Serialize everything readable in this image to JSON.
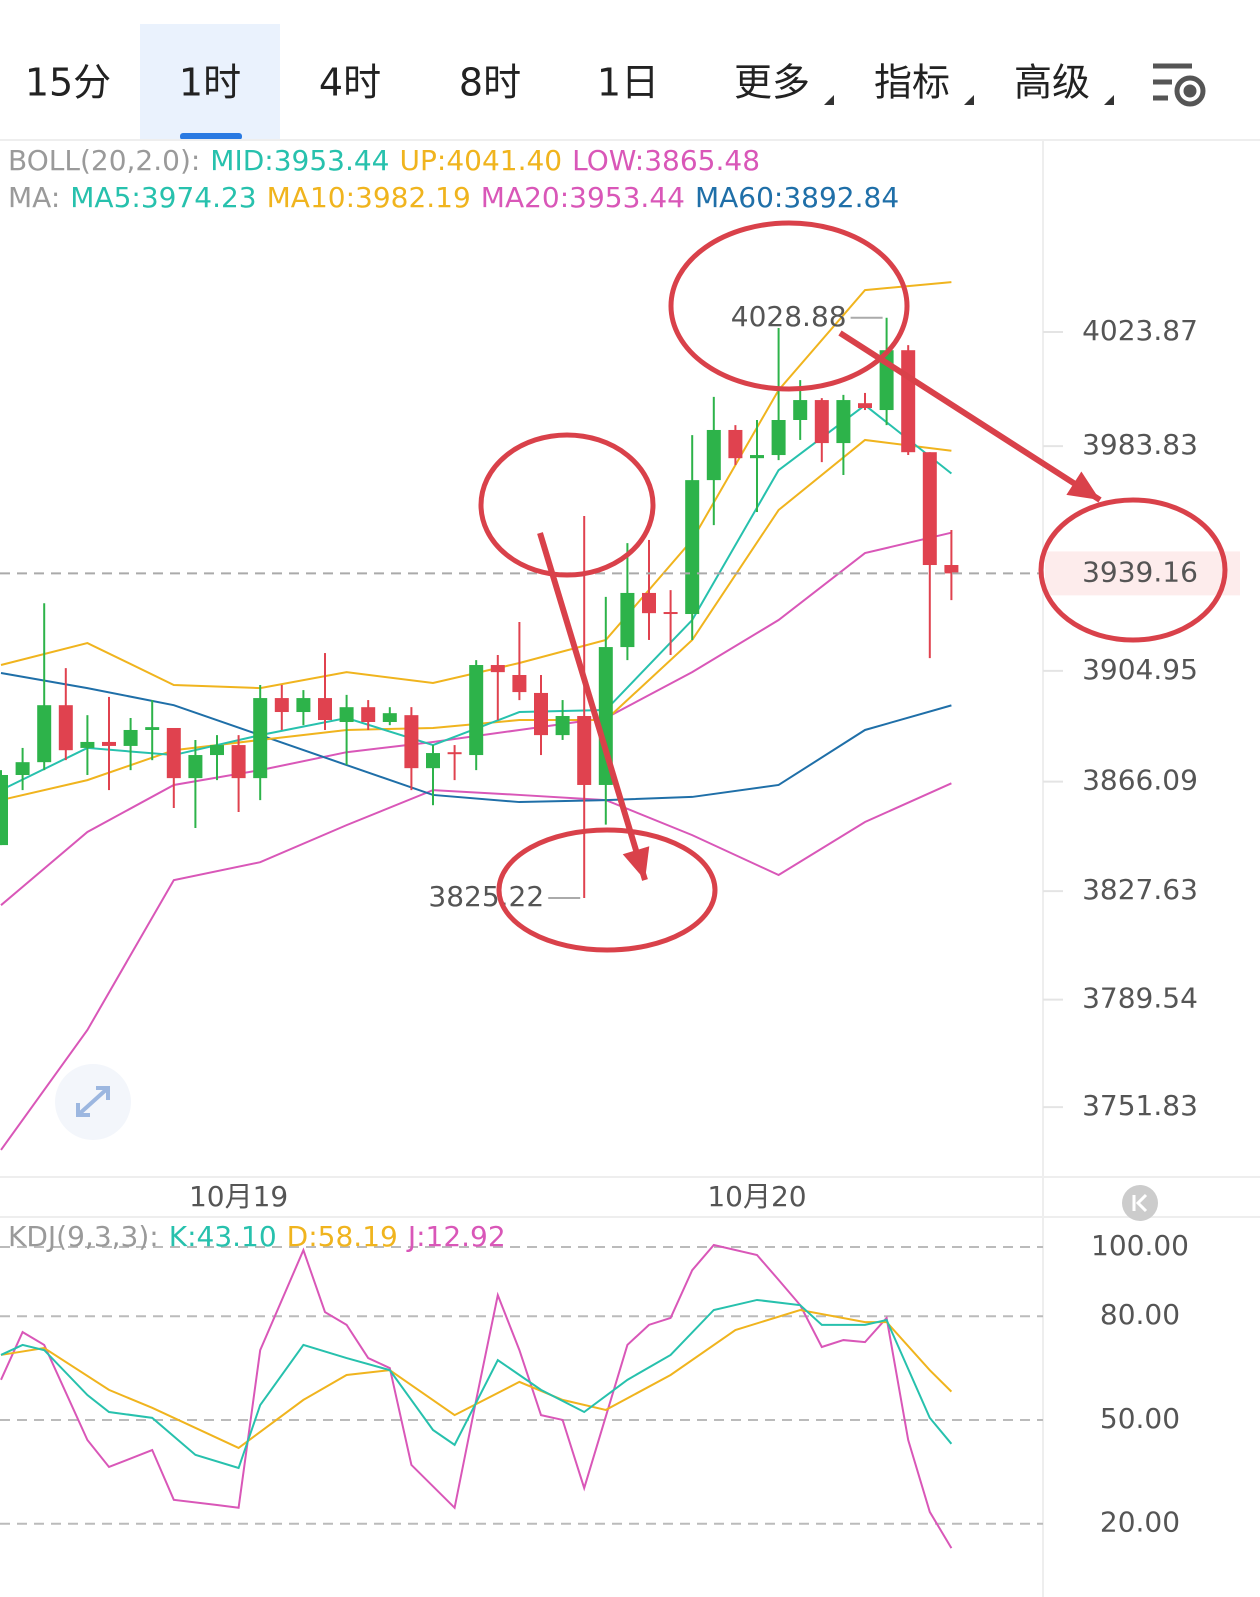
{
  "tabs": [
    "15分",
    "1时",
    "4时",
    "8时",
    "1日",
    "更多",
    "指标",
    "高级"
  ],
  "selected_tab": 1,
  "chart_data": [
    {
      "type": "candlestick",
      "legend": [
        [
          {
            "text": "BOLL(20,2.0):",
            "color": "#9a9a9a"
          },
          {
            "text": "MID:3953.44",
            "color": "#27c1ad"
          },
          {
            "text": "UP:4041.40",
            "color": "#f0b41e"
          },
          {
            "text": "LOW:3865.48",
            "color": "#d957b8"
          }
        ],
        [
          {
            "text": "MA:",
            "color": "#9a9a9a"
          },
          {
            "text": "MA5:3974.23",
            "color": "#27c1ad"
          },
          {
            "text": "MA10:3982.19",
            "color": "#f0b41e"
          },
          {
            "text": "MA20:3953.44",
            "color": "#d957b8"
          },
          {
            "text": "MA60:3892.84",
            "color": "#1f6fa8"
          }
        ]
      ],
      "categories": [
        null,
        null,
        null,
        null,
        null,
        null,
        null,
        null,
        null,
        null,
        null,
        "10月19",
        null,
        null,
        null,
        null,
        null,
        null,
        null,
        null,
        null,
        null,
        null,
        null,
        null,
        null,
        null,
        null,
        null,
        null,
        null,
        null,
        null,
        null,
        null,
        "10月20",
        null,
        null,
        null,
        null,
        null,
        null,
        null,
        null,
        null
      ],
      "open": [
        3843.8,
        3868.4,
        3872.9,
        3892.9,
        3877.9,
        3880.0,
        3878.6,
        3884.2,
        3884.9,
        3867.3,
        3875.4,
        3878.9,
        3867.3,
        3895.4,
        3890.5,
        3895.4,
        3887.0,
        3892.2,
        3887.0,
        3889.4,
        3870.8,
        3876.4,
        3875.4,
        3907.0,
        3903.5,
        3897.2,
        3882.4,
        3889.1,
        3864.9,
        3913.3,
        3932.3,
        3925.6,
        3924.9,
        3971.9,
        3989.5,
        3979.6,
        3980.7,
        3993.0,
        4000.0,
        3984.9,
        3998.9,
        3996.5,
        4017.5,
        3981.7,
        3942.1
      ],
      "high": [
        3870.1,
        3877.9,
        3928.7,
        3905.9,
        3889.4,
        3895.8,
        3888.4,
        3894.7,
        3884.9,
        3880.7,
        3882.4,
        3882.4,
        3900.0,
        3900.0,
        3898.2,
        3911.2,
        3896.5,
        3894.7,
        3892.2,
        3892.2,
        3878.9,
        3878.9,
        3908.7,
        3910.5,
        3922.1,
        3903.5,
        3894.7,
        3959.3,
        3930.9,
        3949.8,
        3950.9,
        3933.3,
        3987.7,
        4001.1,
        3991.2,
        3993.0,
        4025.3,
        4007.0,
        4000.7,
        4001.8,
        4002.5,
        4028.88,
        4019.3,
        3981.7,
        3954.4
      ],
      "low": [
        3843.8,
        3863.1,
        3870.1,
        3873.6,
        3868.4,
        3863.1,
        3870.1,
        3873.6,
        3856.8,
        3849.8,
        3866.6,
        3855.4,
        3859.6,
        3884.2,
        3885.9,
        3884.2,
        3871.9,
        3884.2,
        3885.9,
        3863.1,
        3857.8,
        3866.6,
        3870.1,
        3887.7,
        3894.7,
        3875.4,
        3880.7,
        3825.22,
        3851.0,
        3908.7,
        3915.8,
        3910.5,
        3915.8,
        3956.1,
        3977.2,
        3960.7,
        3978.9,
        3986.0,
        3978.2,
        3973.7,
        3996.5,
        3991.2,
        3980.7,
        3909.4,
        3929.8
      ],
      "close": [
        3868.4,
        3872.9,
        3892.9,
        3877.1,
        3880.0,
        3878.6,
        3884.2,
        3885.2,
        3867.3,
        3875.4,
        3878.9,
        3867.3,
        3895.4,
        3890.5,
        3895.4,
        3887.7,
        3892.2,
        3887.0,
        3890.1,
        3870.8,
        3876.1,
        3875.7,
        3907.0,
        3904.5,
        3897.5,
        3882.4,
        3889.1,
        3864.9,
        3913.3,
        3932.3,
        3925.2,
        3924.9,
        3971.9,
        3989.5,
        3979.6,
        3980.7,
        3993.0,
        4000.0,
        3984.9,
        4000.0,
        3997.2,
        4017.5,
        3981.7,
        3942.1,
        3939.16
      ],
      "up_color": "#2db34a",
      "down_color": "#e0424f",
      "lines": [
        {
          "color": "#f0b41e",
          "x": [
            0,
            4,
            8,
            12,
            16,
            20,
            24,
            28,
            32,
            36,
            40,
            44
          ],
          "values": [
            3907.0,
            3914.7,
            3900.0,
            3898.9,
            3904.5,
            3900.7,
            3907.7,
            3915.8,
            3950.9,
            4003.5,
            4038.6,
            4041.4
          ]
        },
        {
          "color": "#d957b8",
          "x": [
            0,
            4,
            8,
            12,
            16,
            20,
            24,
            28,
            32,
            36,
            40,
            44
          ],
          "values": [
            3736.8,
            3778.9,
            3831.5,
            3837.8,
            3850.8,
            3863.1,
            3861.4,
            3859.6,
            3847.3,
            3833.3,
            3851.9,
            3865.48
          ]
        },
        {
          "color": "#d957b8",
          "x": [
            0,
            4,
            8,
            12,
            16,
            20,
            24,
            28,
            32,
            36,
            40,
            44
          ],
          "values": [
            3822.7,
            3848.4,
            3864.9,
            3870.1,
            3876.4,
            3880.0,
            3884.2,
            3888.4,
            3904.5,
            3922.8,
            3946.3,
            3953.44
          ]
        },
        {
          "color": "#1f6fa8",
          "x": [
            0,
            4,
            8,
            12,
            16,
            20,
            24,
            28,
            32,
            36,
            40,
            44
          ],
          "values": [
            3904.2,
            3898.9,
            3892.9,
            3882.4,
            3871.9,
            3861.4,
            3858.9,
            3859.6,
            3860.7,
            3864.9,
            3884.2,
            3892.84
          ]
        },
        {
          "color": "#f0b41e",
          "x": [
            0,
            4,
            8,
            12,
            16,
            20,
            24,
            28,
            32,
            36,
            40,
            44
          ],
          "values": [
            3859.6,
            3866.6,
            3877.1,
            3880.7,
            3884.2,
            3884.9,
            3887.7,
            3887.7,
            3915.8,
            3961.4,
            3986.0,
            3982.19
          ]
        },
        {
          "color": "#27c1ad",
          "x": [
            0,
            4,
            8,
            12,
            16,
            20,
            24,
            28,
            32,
            36,
            40,
            44
          ],
          "values": [
            3863.1,
            3877.9,
            3875.4,
            3882.4,
            3888.4,
            3878.9,
            3890.5,
            3891.2,
            3922.8,
            3975.4,
            3998.2,
            3974.23
          ]
        }
      ],
      "ylim": [
        3728.0,
        4063.2
      ],
      "yticks": [
        4023.87,
        3983.83,
        3904.95,
        3866.09,
        3827.63,
        3789.54,
        3751.83
      ]
    },
    {
      "type": "line",
      "legend": [
        [
          {
            "text": "KDJ(9,3,3):",
            "color": "#9a9a9a"
          },
          {
            "text": "K:43.10",
            "color": "#27c1ad"
          },
          {
            "text": "D:58.19",
            "color": "#f0b41e"
          },
          {
            "text": "J:12.92",
            "color": "#d957b8"
          }
        ]
      ],
      "series": [
        {
          "color": "#d957b8",
          "x": [
            0,
            1,
            2,
            4,
            5,
            7,
            8,
            10,
            11,
            12,
            14,
            15,
            16,
            17,
            18,
            19,
            21,
            22,
            23,
            24,
            25,
            26,
            27,
            29,
            30,
            31,
            32,
            33,
            35,
            36,
            37,
            38,
            39,
            40,
            41,
            42,
            43,
            44
          ],
          "values": [
            61.6,
            75.4,
            71.7,
            44.2,
            36.4,
            41.3,
            26.9,
            25.4,
            24.6,
            70.2,
            99.1,
            81.2,
            77.5,
            67.9,
            65.0,
            37.0,
            24.6,
            55.8,
            86.1,
            70.2,
            51.4,
            50.0,
            30.3,
            71.7,
            77.5,
            79.5,
            93.3,
            100.6,
            97.7,
            90.5,
            83.2,
            71.1,
            73.1,
            72.5,
            79.5,
            44.2,
            23.4,
            12.92
          ]
        },
        {
          "color": "#f0b41e",
          "x": [
            0,
            2,
            5,
            7,
            11,
            14,
            16,
            18,
            21,
            24,
            26,
            28,
            31,
            34,
            37,
            40,
            41,
            43,
            44
          ],
          "values": [
            68.8,
            70.8,
            58.7,
            53.5,
            41.9,
            55.8,
            63.0,
            64.4,
            51.4,
            61.0,
            55.8,
            52.9,
            63.0,
            76.0,
            81.8,
            78.3,
            78.3,
            64.4,
            58.19
          ]
        },
        {
          "color": "#27c1ad",
          "x": [
            0,
            1,
            2,
            4,
            5,
            7,
            9,
            11,
            12,
            14,
            16,
            18,
            20,
            21,
            23,
            25,
            27,
            29,
            31,
            33,
            35,
            37,
            38,
            40,
            41,
            43,
            44
          ],
          "values": [
            68.8,
            71.7,
            70.2,
            57.2,
            52.3,
            50.6,
            39.9,
            36.1,
            54.3,
            71.7,
            67.9,
            64.4,
            47.1,
            42.8,
            67.3,
            58.7,
            52.3,
            61.6,
            68.8,
            81.8,
            84.7,
            83.2,
            77.5,
            77.5,
            78.9,
            50.6,
            43.1
          ]
        }
      ],
      "ylim": [
        -1.2,
        108.4
      ],
      "yticks": [
        {
          "value": 100,
          "label": "100.00"
        },
        {
          "value": 80,
          "label": "80.00"
        },
        {
          "value": 50,
          "label": "50.00"
        },
        {
          "value": 20,
          "label": "20.00"
        }
      ],
      "grid": true
    }
  ]
}
